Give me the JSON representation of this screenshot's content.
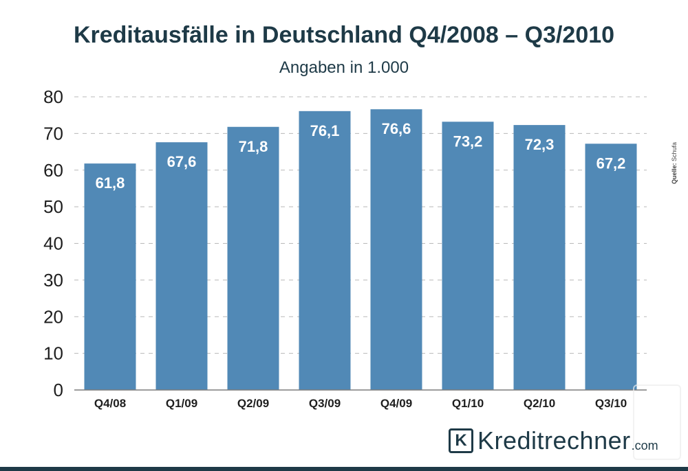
{
  "chart_data": {
    "type": "bar",
    "title": "Kreditausfälle in Deutschland Q4/2008 – Q3/2010",
    "subtitle": "Angaben in 1.000",
    "categories": [
      "Q4/08",
      "Q1/09",
      "Q2/09",
      "Q3/09",
      "Q4/09",
      "Q1/10",
      "Q2/10",
      "Q3/10"
    ],
    "values": [
      61.8,
      67.6,
      71.8,
      76.1,
      76.6,
      73.2,
      72.3,
      67.2
    ],
    "value_labels": [
      "61,8",
      "67,6",
      "71,8",
      "76,1",
      "76,6",
      "73,2",
      "72,3",
      "67,2"
    ],
    "ylim": [
      0,
      80
    ],
    "yticks": [
      0,
      10,
      20,
      30,
      40,
      50,
      60,
      70,
      80
    ],
    "grid": true,
    "bar_color": "#5189b6",
    "grid_color": "#b8b8b8"
  },
  "source": {
    "label": "Quelle:",
    "value": "Schufa"
  },
  "brand": {
    "logo_letter": "K",
    "name": "Kreditrechner",
    "tld": ".com",
    "color": "#1e3a47"
  }
}
